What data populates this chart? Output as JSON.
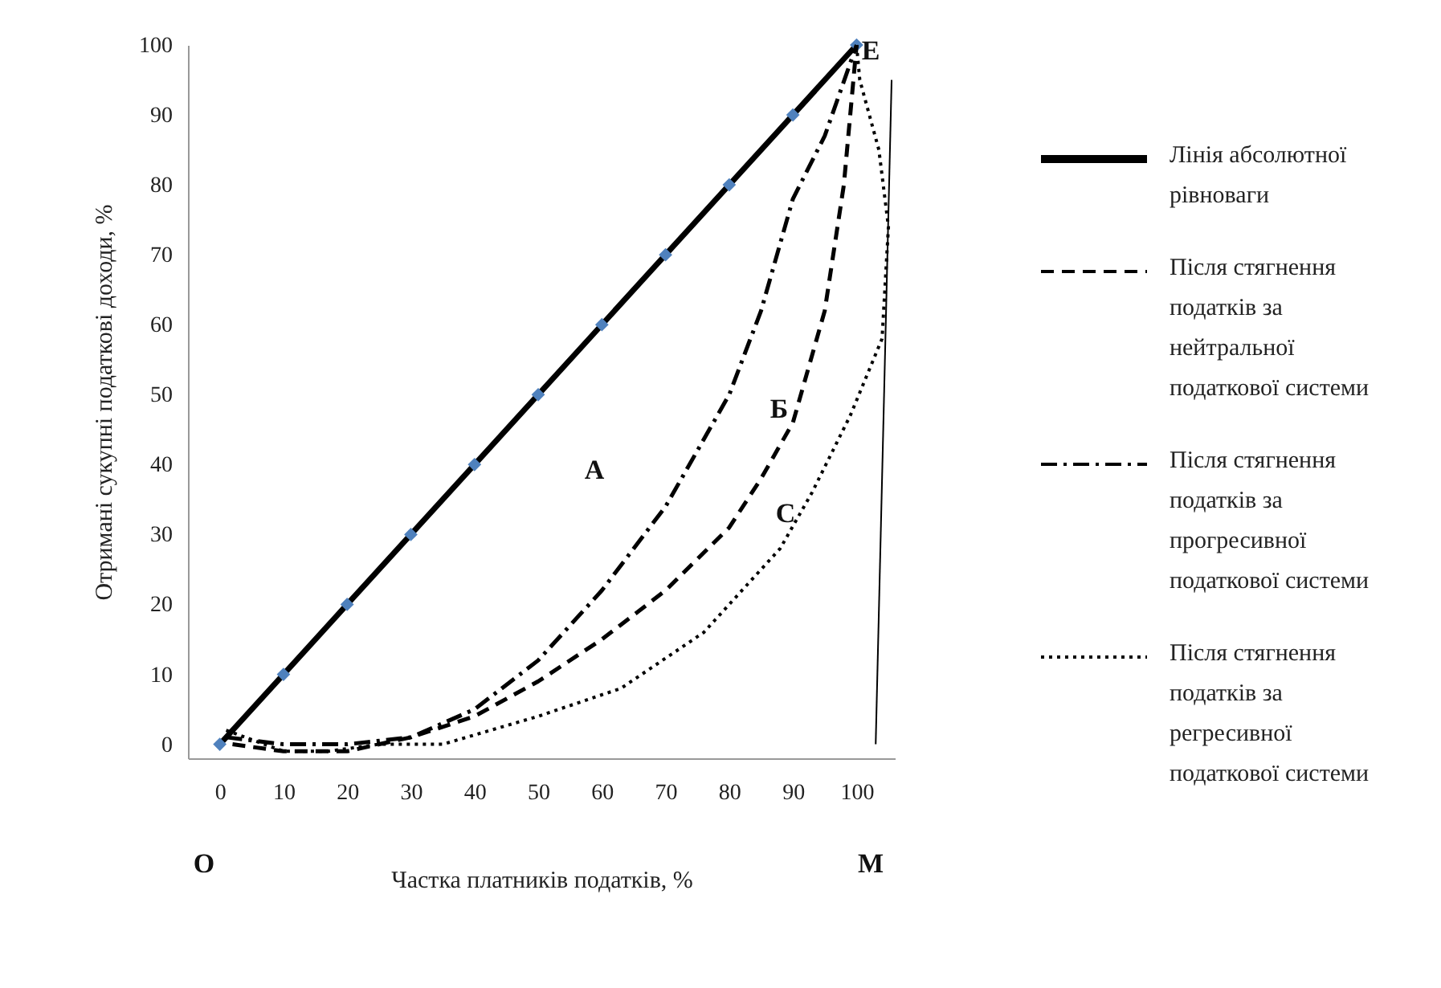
{
  "chart_data": {
    "type": "line",
    "xlabel": "Частка платників податків, %",
    "ylabel": "Отримані сукупні податкові доходи, %",
    "xlim": [
      -5,
      106
    ],
    "ylim": [
      -2,
      100
    ],
    "xticks": [
      0,
      10,
      20,
      30,
      40,
      50,
      60,
      70,
      80,
      90,
      100
    ],
    "yticks": [
      0,
      10,
      20,
      30,
      40,
      50,
      60,
      70,
      80,
      90,
      100
    ],
    "grid": false,
    "legend": "right",
    "series": [
      {
        "name": "Лінія абсолютної рівноваги",
        "color": "#000000",
        "line_style": "solid",
        "x": [
          0,
          10,
          20,
          30,
          40,
          50,
          60,
          70,
          80,
          90,
          100
        ],
        "values": [
          0,
          10,
          20,
          30,
          40,
          50,
          60,
          70,
          80,
          90,
          100
        ]
      },
      {
        "type": "scatter",
        "color": "#4f81bd",
        "marker": "diamond",
        "x": [
          0,
          10,
          20,
          30,
          40,
          50,
          60,
          70,
          80,
          90,
          100
        ],
        "values": [
          0,
          10,
          20,
          30,
          40,
          50,
          60,
          70,
          80,
          90,
          100
        ]
      },
      {
        "name": "Після стягнення податків за нейтральної податкової системи",
        "color": "#000000",
        "line_style": "dashed",
        "x": [
          2,
          10,
          20,
          30,
          40,
          50,
          60,
          70,
          80,
          85,
          90,
          95,
          98,
          100
        ],
        "values": [
          0,
          -1,
          -1,
          1,
          4,
          9,
          15,
          22,
          31,
          38,
          46,
          62,
          80,
          100
        ]
      },
      {
        "name": "Після стягнення податків за прогресивної податкової системи",
        "color": "#000000",
        "line_style": "dashdot",
        "x": [
          1,
          10,
          20,
          30,
          40,
          50,
          60,
          70,
          75,
          80,
          85,
          90,
          95,
          100
        ],
        "values": [
          1,
          0,
          0,
          1,
          5,
          12,
          22,
          34,
          42,
          50,
          62,
          78,
          87,
          100
        ]
      },
      {
        "name": "Після стягнення податків за регресивної податкової системи",
        "color": "#000000",
        "line_style": "dotted",
        "x": [
          1,
          10,
          17,
          25,
          35,
          50,
          63,
          76,
          84,
          88,
          93,
          99,
          104,
          105,
          103.5,
          100.5,
          100
        ],
        "values": [
          2,
          -1,
          -1,
          0,
          0,
          4,
          8,
          16,
          24,
          28,
          36,
          47,
          58,
          74,
          85,
          95,
          100
        ]
      },
      {
        "color": "#000000",
        "line_style": "solid",
        "x": [
          103,
          105.5
        ],
        "values": [
          0,
          95
        ]
      }
    ],
    "annotations": [
      "A",
      "Б",
      "C",
      "E",
      "O",
      "M"
    ]
  }
}
